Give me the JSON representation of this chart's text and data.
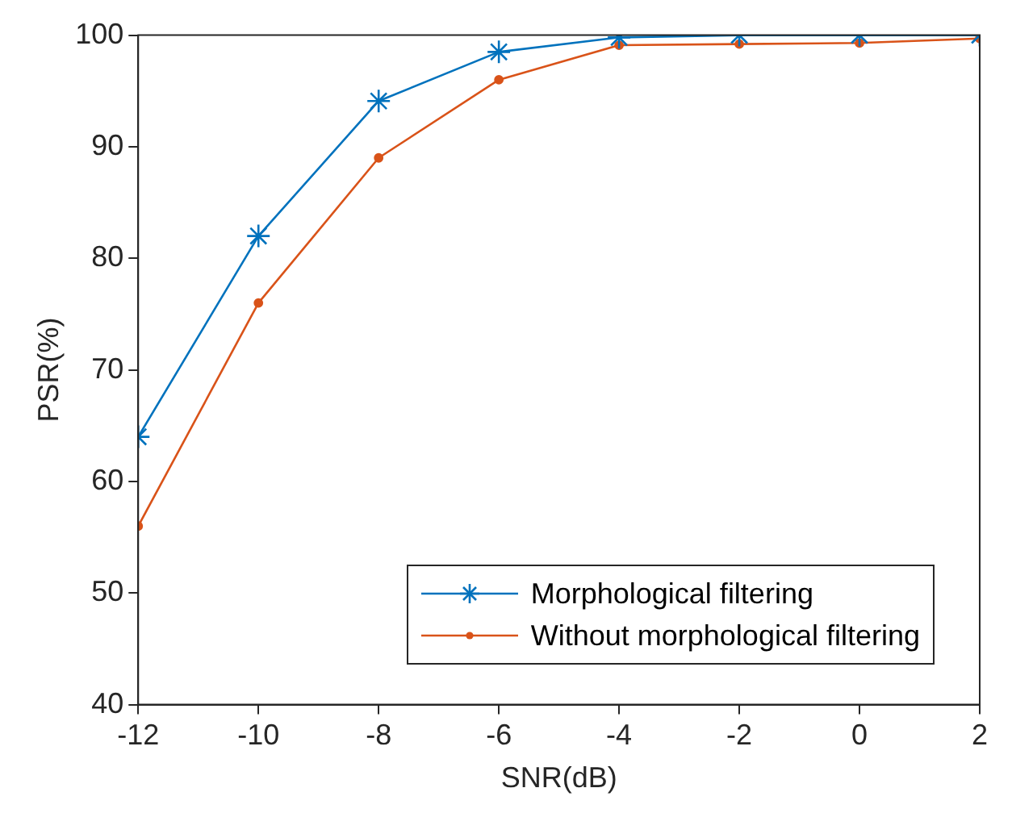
{
  "chart_data": {
    "type": "line",
    "xlabel": "SNR(dB)",
    "ylabel": "PSR(%)",
    "x": [
      -12,
      -10,
      -8,
      -6,
      -4,
      -2,
      0,
      2
    ],
    "series": [
      {
        "name": "Morphological filtering",
        "color": "#0072bd",
        "marker": "cross",
        "values": [
          64,
          82,
          94.1,
          98.5,
          99.8,
          100,
          100,
          100
        ]
      },
      {
        "name": "Without morphological filtering",
        "color": "#d95319",
        "marker": "circle",
        "values": [
          56,
          76,
          89,
          96,
          99.1,
          99.2,
          99.3,
          99.7
        ]
      }
    ],
    "xlim": [
      -12,
      2
    ],
    "xticks": [
      -12,
      -10,
      -8,
      -6,
      -4,
      -2,
      0,
      2
    ],
    "ylim": [
      40,
      100
    ],
    "yticks": [
      40,
      50,
      60,
      70,
      80,
      90,
      100
    ],
    "grid": false,
    "legend": "bottom right",
    "line_style": "solid"
  }
}
